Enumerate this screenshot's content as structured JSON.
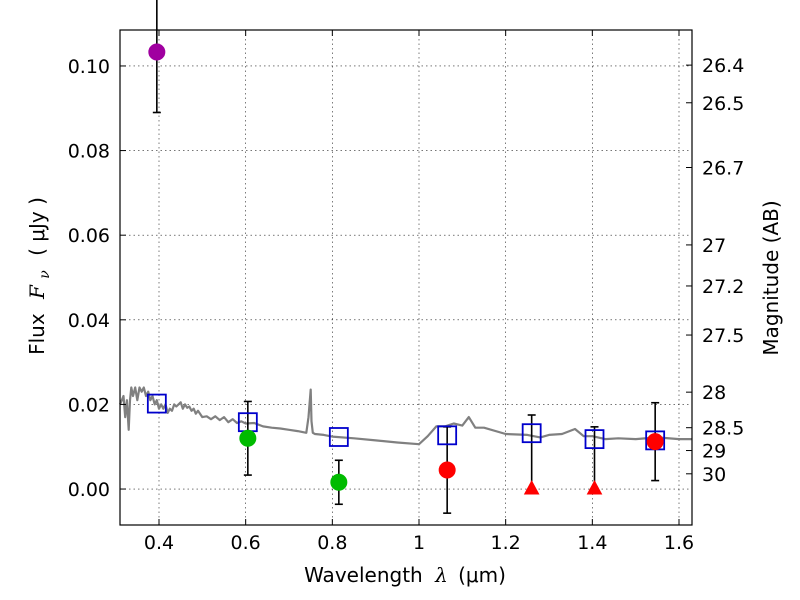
{
  "chart_data": {
    "type": "scatter",
    "xlabel_prefix": "Wavelength",
    "xlabel_symbol": "λ",
    "xlabel_unit": "(μm)",
    "ylabel_prefix": "Flux",
    "ylabel_symbol": "F",
    "ylabel_subscript": "ν",
    "ylabel_unit": "( μJy )",
    "y2label": "Magnitude (AB)",
    "xlim": [
      0.31,
      1.63
    ],
    "ylim": [
      -0.0085,
      0.1085
    ],
    "xticks": [
      0.4,
      0.6,
      0.8,
      1.0,
      1.2,
      1.4,
      1.6
    ],
    "xtick_labels": [
      "0.4",
      "0.6",
      "0.8",
      "1",
      "1.2",
      "1.4",
      "1.6"
    ],
    "yticks": [
      0.0,
      0.02,
      0.04,
      0.06,
      0.08,
      0.1
    ],
    "ytick_labels": [
      "0.00",
      "0.02",
      "0.04",
      "0.06",
      "0.08",
      "0.10"
    ],
    "mag_ticks": [
      {
        "label": "26.4",
        "flux": 0.1002
      },
      {
        "label": "26.5",
        "flux": 0.0913
      },
      {
        "label": "26.7",
        "flux": 0.076
      },
      {
        "label": "27",
        "flux": 0.0577
      },
      {
        "label": "27.2",
        "flux": 0.048
      },
      {
        "label": "27.5",
        "flux": 0.0364
      },
      {
        "label": "28",
        "flux": 0.0229
      },
      {
        "label": "28.5",
        "flux": 0.0145
      },
      {
        "label": "29",
        "flux": 0.0091
      },
      {
        "label": "30",
        "flux": 0.0036
      }
    ],
    "colors": {
      "model": "#808080",
      "model_phot": "#0000cc",
      "uv": "#a000a0",
      "optical": "#00bb00",
      "nir": "#ff0000",
      "errorbar": "#000000"
    },
    "model_spectrum": {
      "x": [
        0.31,
        0.318,
        0.322,
        0.326,
        0.33,
        0.333,
        0.336,
        0.34,
        0.345,
        0.35,
        0.355,
        0.36,
        0.365,
        0.37,
        0.375,
        0.38,
        0.385,
        0.39,
        0.395,
        0.4,
        0.405,
        0.41,
        0.415,
        0.42,
        0.425,
        0.43,
        0.435,
        0.44,
        0.445,
        0.45,
        0.455,
        0.46,
        0.465,
        0.47,
        0.475,
        0.48,
        0.485,
        0.49,
        0.5,
        0.51,
        0.52,
        0.53,
        0.54,
        0.55,
        0.56,
        0.57,
        0.58,
        0.59,
        0.6,
        0.62,
        0.64,
        0.66,
        0.68,
        0.7,
        0.72,
        0.74,
        0.745,
        0.75,
        0.752,
        0.755,
        0.76,
        0.78,
        0.8,
        0.85,
        0.9,
        0.95,
        1.0,
        1.02,
        1.04,
        1.06,
        1.08,
        1.1,
        1.115,
        1.13,
        1.15,
        1.2,
        1.25,
        1.28,
        1.3,
        1.33,
        1.36,
        1.38,
        1.4,
        1.43,
        1.46,
        1.5,
        1.55,
        1.6,
        1.63
      ],
      "y": [
        0.02,
        0.022,
        0.017,
        0.021,
        0.014,
        0.021,
        0.024,
        0.022,
        0.024,
        0.021,
        0.024,
        0.023,
        0.024,
        0.022,
        0.023,
        0.021,
        0.022,
        0.02,
        0.021,
        0.019,
        0.02,
        0.019,
        0.02,
        0.018,
        0.019,
        0.0185,
        0.02,
        0.0195,
        0.02,
        0.0205,
        0.019,
        0.02,
        0.0192,
        0.0195,
        0.0185,
        0.019,
        0.0178,
        0.0185,
        0.017,
        0.0172,
        0.0165,
        0.0172,
        0.0163,
        0.017,
        0.0158,
        0.0165,
        0.0156,
        0.016,
        0.0155,
        0.0156,
        0.0148,
        0.0145,
        0.0143,
        0.014,
        0.0137,
        0.0133,
        0.017,
        0.0235,
        0.016,
        0.0133,
        0.013,
        0.0128,
        0.0124,
        0.012,
        0.0115,
        0.011,
        0.0106,
        0.0125,
        0.0148,
        0.0148,
        0.0155,
        0.015,
        0.017,
        0.0145,
        0.0145,
        0.013,
        0.0128,
        0.0122,
        0.0128,
        0.013,
        0.0142,
        0.0125,
        0.0125,
        0.0118,
        0.012,
        0.0118,
        0.0122,
        0.0118,
        0.0118
      ]
    },
    "model_photometry": {
      "x": [
        0.395,
        0.605,
        0.815,
        1.065,
        1.26,
        1.405,
        1.545
      ],
      "y": [
        0.0202,
        0.0158,
        0.0123,
        0.0127,
        0.0132,
        0.0118,
        0.0115
      ]
    },
    "uv_points": {
      "x": [
        0.395
      ],
      "y": [
        0.1033
      ],
      "err": [
        0.0143
      ]
    },
    "optical_points": {
      "x": [
        0.605,
        0.815
      ],
      "y": [
        0.012,
        0.0016
      ],
      "err": [
        0.0087,
        0.0052
      ]
    },
    "nir_points": {
      "x": [
        1.065,
        1.545
      ],
      "y": [
        0.0045,
        0.0112
      ],
      "err": [
        0.0102,
        0.0092
      ]
    },
    "upper_limits": {
      "x": [
        1.26,
        1.405
      ],
      "y": [
        0.0,
        0.0
      ],
      "err_top": [
        0.0175,
        0.0147
      ]
    }
  }
}
